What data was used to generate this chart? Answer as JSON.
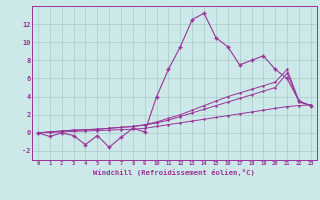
{
  "xlabel": "Windchill (Refroidissement éolien,°C)",
  "x": [
    0,
    1,
    2,
    3,
    4,
    5,
    6,
    7,
    8,
    9,
    10,
    11,
    12,
    13,
    14,
    15,
    16,
    17,
    18,
    19,
    20,
    21,
    22,
    23
  ],
  "line1": [
    0.0,
    -0.4,
    0.0,
    -0.3,
    -1.3,
    -0.3,
    -1.6,
    -0.5,
    0.5,
    0.1,
    4.0,
    7.0,
    9.5,
    12.5,
    13.2,
    10.5,
    9.5,
    7.5,
    8.0,
    8.5,
    7.0,
    6.0,
    3.5,
    3.0
  ],
  "line2": [
    0.0,
    0.1,
    0.2,
    0.3,
    0.35,
    0.4,
    0.5,
    0.6,
    0.7,
    0.9,
    1.2,
    1.6,
    2.0,
    2.5,
    3.0,
    3.5,
    4.0,
    4.4,
    4.8,
    5.2,
    5.6,
    7.0,
    3.5,
    3.0
  ],
  "line3": [
    0.0,
    0.1,
    0.2,
    0.3,
    0.35,
    0.4,
    0.5,
    0.6,
    0.7,
    0.85,
    1.1,
    1.4,
    1.8,
    2.2,
    2.6,
    3.0,
    3.4,
    3.8,
    4.2,
    4.6,
    5.0,
    6.6,
    3.4,
    3.0
  ],
  "line4": [
    0.0,
    0.05,
    0.1,
    0.15,
    0.2,
    0.25,
    0.3,
    0.35,
    0.4,
    0.5,
    0.7,
    0.9,
    1.1,
    1.3,
    1.5,
    1.7,
    1.9,
    2.1,
    2.3,
    2.5,
    2.7,
    2.9,
    3.0,
    3.1
  ],
  "line_color": "#993399",
  "bg_color": "#cce8e8",
  "grid_color": "#aacccc",
  "ylim": [
    -3.0,
    14.0
  ],
  "yticks": [
    -2,
    0,
    2,
    4,
    6,
    8,
    10,
    12
  ],
  "xticks": [
    0,
    1,
    2,
    3,
    4,
    5,
    6,
    7,
    8,
    9,
    10,
    11,
    12,
    13,
    14,
    15,
    16,
    17,
    18,
    19,
    20,
    21,
    22,
    23
  ]
}
